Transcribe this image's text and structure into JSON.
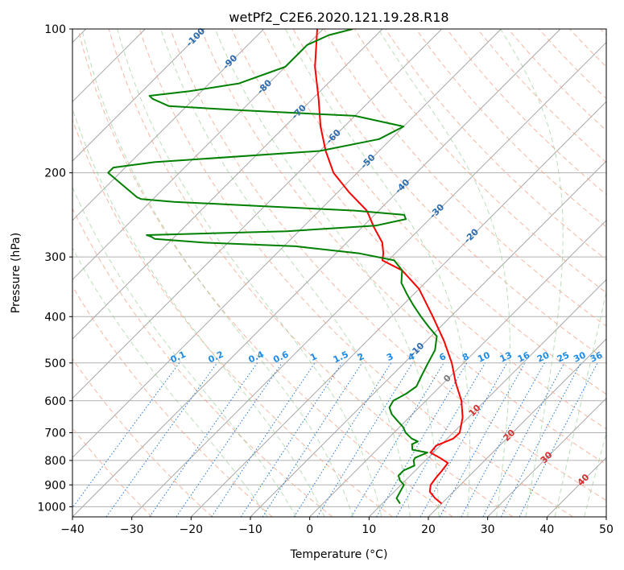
{
  "chart_data": {
    "type": "line",
    "title": "wetPf2_C2E6.2020.121.19.28.R18",
    "xlabel": "Temperature (°C)",
    "ylabel": "Pressure (hPa)",
    "xlim": [
      -40,
      50
    ],
    "ylim": [
      1050,
      100
    ],
    "y_scale": "log",
    "x_ticks": [
      -40,
      -30,
      -20,
      -10,
      0,
      10,
      20,
      30,
      40,
      50
    ],
    "x_tick_labels": [
      "−40",
      "−30",
      "−20",
      "−10",
      "0",
      "10",
      "20",
      "30",
      "40",
      "50"
    ],
    "y_ticks": [
      100,
      200,
      300,
      400,
      500,
      600,
      700,
      800,
      900,
      1000
    ],
    "y_tick_labels": [
      "100",
      "200",
      "300",
      "400",
      "500",
      "600",
      "700",
      "800",
      "900",
      "1000"
    ],
    "grid": true,
    "skew": 45,
    "isotherm_labels": [
      "-100",
      "-90",
      "-80",
      "-70",
      "-60",
      "-50",
      "-40",
      "-30",
      "-20",
      "-10",
      "0",
      "10",
      "20",
      "30",
      "40"
    ],
    "isotherm_label_values": [
      -100,
      -90,
      -80,
      -70,
      -60,
      -50,
      -40,
      -30,
      -20,
      -10,
      0,
      10,
      20,
      30,
      40
    ],
    "mixing_ratio_labels": [
      "0.1",
      "0.2",
      "0.4",
      "0.6",
      "1",
      "1.5",
      "2",
      "3",
      "4",
      "6",
      "8",
      "10",
      "13",
      "16",
      "20",
      "25",
      "30",
      "36"
    ],
    "mixing_ratio_values": [
      0.1,
      0.2,
      0.4,
      0.6,
      1,
      1.5,
      2,
      3,
      4,
      6,
      8,
      10,
      13,
      16,
      20,
      25,
      30,
      36
    ],
    "series": [
      {
        "role": "temperature",
        "color": "#ff0000",
        "pressure": [
          985,
          960,
          930,
          900,
          870,
          840,
          810,
          790,
          770,
          745,
          720,
          700,
          650,
          600,
          550,
          500,
          450,
          400,
          350,
          320,
          305,
          295,
          280,
          260,
          240,
          220,
          200,
          180,
          160,
          140,
          120,
          100
        ],
        "temperature": [
          20.0,
          18.0,
          16.0,
          15.0,
          14.7,
          14.5,
          14.2,
          12.0,
          9.5,
          9.3,
          11.0,
          11.1,
          9.0,
          6.0,
          2.0,
          -2.0,
          -7.0,
          -13.0,
          -20.0,
          -26.0,
          -31.0,
          -32.0,
          -34.0,
          -38.0,
          -42.0,
          -48.0,
          -54.0,
          -59.0,
          -64.0,
          -69.0,
          -75.0,
          -81.0
        ]
      },
      {
        "role": "dewpoint",
        "color": "#008000",
        "pressure": [
          985,
          960,
          930,
          900,
          880,
          860,
          840,
          820,
          800,
          790,
          770,
          760,
          740,
          730,
          720,
          700,
          680,
          660,
          640,
          620,
          600,
          580,
          560,
          530,
          500,
          470,
          440,
          420,
          400,
          380,
          360,
          340,
          320,
          305,
          295,
          285,
          280,
          275,
          272,
          270,
          268,
          265,
          258,
          250,
          245,
          240,
          235,
          230,
          227,
          225,
          200,
          195,
          190,
          180,
          170,
          160,
          152,
          148,
          145,
          140,
          138,
          135,
          130,
          120,
          113,
          108,
          103,
          100
        ],
        "temperature": [
          13.0,
          11.5,
          11.0,
          10.5,
          9.0,
          8.0,
          8.0,
          9.0,
          8.0,
          7.8,
          9.0,
          6.0,
          5.0,
          5.5,
          4.0,
          2.0,
          0.5,
          -1.5,
          -3.5,
          -5.0,
          -5.5,
          -4.5,
          -4.0,
          -5.0,
          -6.0,
          -7.0,
          -9.0,
          -12.0,
          -15.0,
          -18.0,
          -21.0,
          -24.0,
          -26.0,
          -29.0,
          -36.0,
          -48.0,
          -64.0,
          -73.0,
          -74.0,
          -75.0,
          -66.0,
          -52.0,
          -38.0,
          -34.0,
          -35.0,
          -44.0,
          -60.0,
          -76.0,
          -82.0,
          -83.0,
          -92.0,
          -92.0,
          -86.0,
          -60.0,
          -52.0,
          -50.0,
          -60.0,
          -80.0,
          -93.0,
          -97.0,
          -98.0,
          -92.0,
          -85.0,
          -80.0,
          -80.0,
          -80.0,
          -78.0,
          -75.0
        ]
      }
    ]
  }
}
